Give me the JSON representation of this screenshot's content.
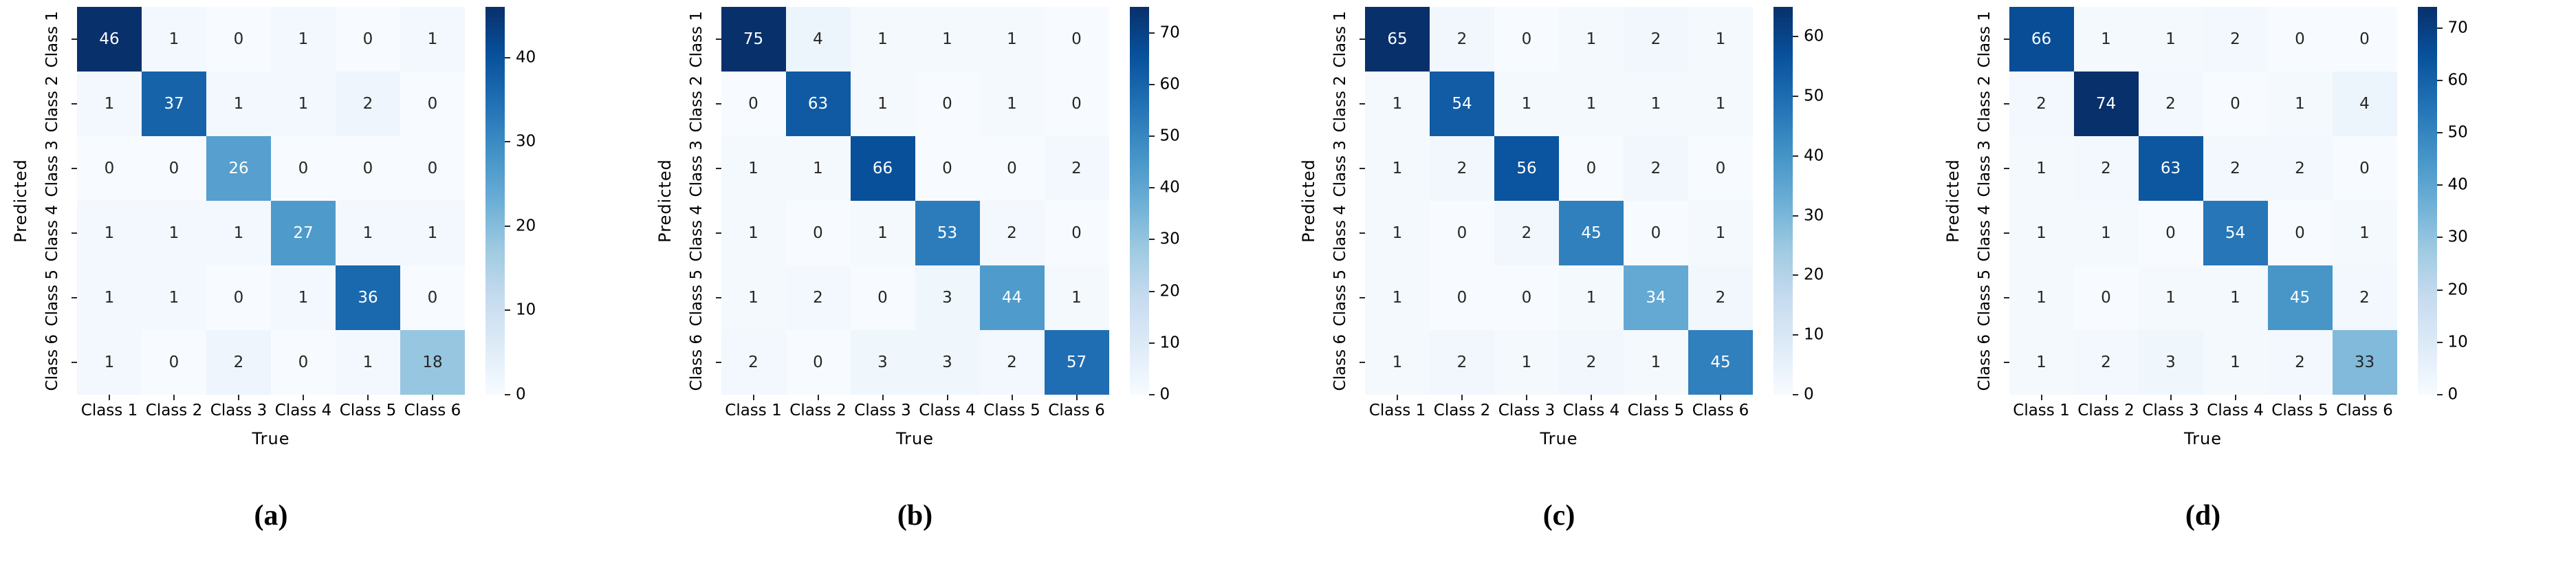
{
  "figure": {
    "description": "Four confusion matrix heatmaps",
    "xlabel": "True",
    "ylabel": "Predicted",
    "classes": [
      "Class 1",
      "Class 2",
      "Class 3",
      "Class 4",
      "Class 5",
      "Class 6"
    ]
  },
  "colors": {
    "background": "#ffffff",
    "colormap_lightest": "#f7fbff",
    "colormap_darkest": "#08306b",
    "annotation_light": "#ffffff",
    "annotation_dark": "#262626",
    "axis_text": "#000000"
  },
  "chart_data": [
    {
      "type": "heatmap",
      "caption": "(a)",
      "xlabel": "True",
      "ylabel": "Predicted",
      "x_categories": [
        "Class 1",
        "Class 2",
        "Class 3",
        "Class 4",
        "Class 5",
        "Class 6"
      ],
      "y_categories": [
        "Class 1",
        "Class 2",
        "Class 3",
        "Class 4",
        "Class 5",
        "Class 6"
      ],
      "values": [
        [
          46,
          1,
          0,
          1,
          0,
          1
        ],
        [
          1,
          37,
          1,
          1,
          2,
          0
        ],
        [
          0,
          0,
          26,
          0,
          0,
          0
        ],
        [
          1,
          1,
          1,
          27,
          1,
          1
        ],
        [
          1,
          1,
          0,
          1,
          36,
          0
        ],
        [
          1,
          0,
          2,
          0,
          1,
          18
        ]
      ],
      "vmin": 0,
      "vmax": 46,
      "colormap": "Blues",
      "colorbar_ticks": [
        0,
        10,
        20,
        30,
        40
      ],
      "legend_position": "right-colorbar",
      "grid": false
    },
    {
      "type": "heatmap",
      "caption": "(b)",
      "xlabel": "True",
      "ylabel": "Predicted",
      "x_categories": [
        "Class 1",
        "Class 2",
        "Class 3",
        "Class 4",
        "Class 5",
        "Class 6"
      ],
      "y_categories": [
        "Class 1",
        "Class 2",
        "Class 3",
        "Class 4",
        "Class 5",
        "Class 6"
      ],
      "values": [
        [
          75,
          4,
          1,
          1,
          1,
          0
        ],
        [
          0,
          63,
          1,
          0,
          1,
          0
        ],
        [
          1,
          1,
          66,
          0,
          0,
          2
        ],
        [
          1,
          0,
          1,
          53,
          2,
          0
        ],
        [
          1,
          2,
          0,
          3,
          44,
          1
        ],
        [
          2,
          0,
          3,
          3,
          2,
          57
        ]
      ],
      "vmin": 0,
      "vmax": 75,
      "colormap": "Blues",
      "colorbar_ticks": [
        0,
        10,
        20,
        30,
        40,
        50,
        60,
        70
      ],
      "legend_position": "right-colorbar",
      "grid": false
    },
    {
      "type": "heatmap",
      "caption": "(c)",
      "xlabel": "True",
      "ylabel": "Predicted",
      "x_categories": [
        "Class 1",
        "Class 2",
        "Class 3",
        "Class 4",
        "Class 5",
        "Class 6"
      ],
      "y_categories": [
        "Class 1",
        "Class 2",
        "Class 3",
        "Class 4",
        "Class 5",
        "Class 6"
      ],
      "values": [
        [
          65,
          2,
          0,
          1,
          2,
          1
        ],
        [
          1,
          54,
          1,
          1,
          1,
          1
        ],
        [
          1,
          2,
          56,
          0,
          2,
          0
        ],
        [
          1,
          0,
          2,
          45,
          0,
          1
        ],
        [
          1,
          0,
          0,
          1,
          34,
          2
        ],
        [
          1,
          2,
          1,
          2,
          1,
          45
        ]
      ],
      "vmin": 0,
      "vmax": 65,
      "colormap": "Blues",
      "colorbar_ticks": [
        0,
        10,
        20,
        30,
        40,
        50,
        60
      ],
      "legend_position": "right-colorbar",
      "grid": false
    },
    {
      "type": "heatmap",
      "caption": "(d)",
      "xlabel": "True",
      "ylabel": "Predicted",
      "x_categories": [
        "Class 1",
        "Class 2",
        "Class 3",
        "Class 4",
        "Class 5",
        "Class 6"
      ],
      "y_categories": [
        "Class 1",
        "Class 2",
        "Class 3",
        "Class 4",
        "Class 5",
        "Class 6"
      ],
      "values": [
        [
          66,
          1,
          1,
          2,
          0,
          0
        ],
        [
          2,
          74,
          2,
          0,
          1,
          4
        ],
        [
          1,
          2,
          63,
          2,
          2,
          0
        ],
        [
          1,
          1,
          0,
          54,
          0,
          1
        ],
        [
          1,
          0,
          1,
          1,
          45,
          2
        ],
        [
          1,
          2,
          3,
          1,
          2,
          33
        ]
      ],
      "vmin": 0,
      "vmax": 74,
      "colormap": "Blues",
      "colorbar_ticks": [
        0,
        10,
        20,
        30,
        40,
        50,
        60,
        70
      ],
      "legend_position": "right-colorbar",
      "grid": false
    }
  ]
}
